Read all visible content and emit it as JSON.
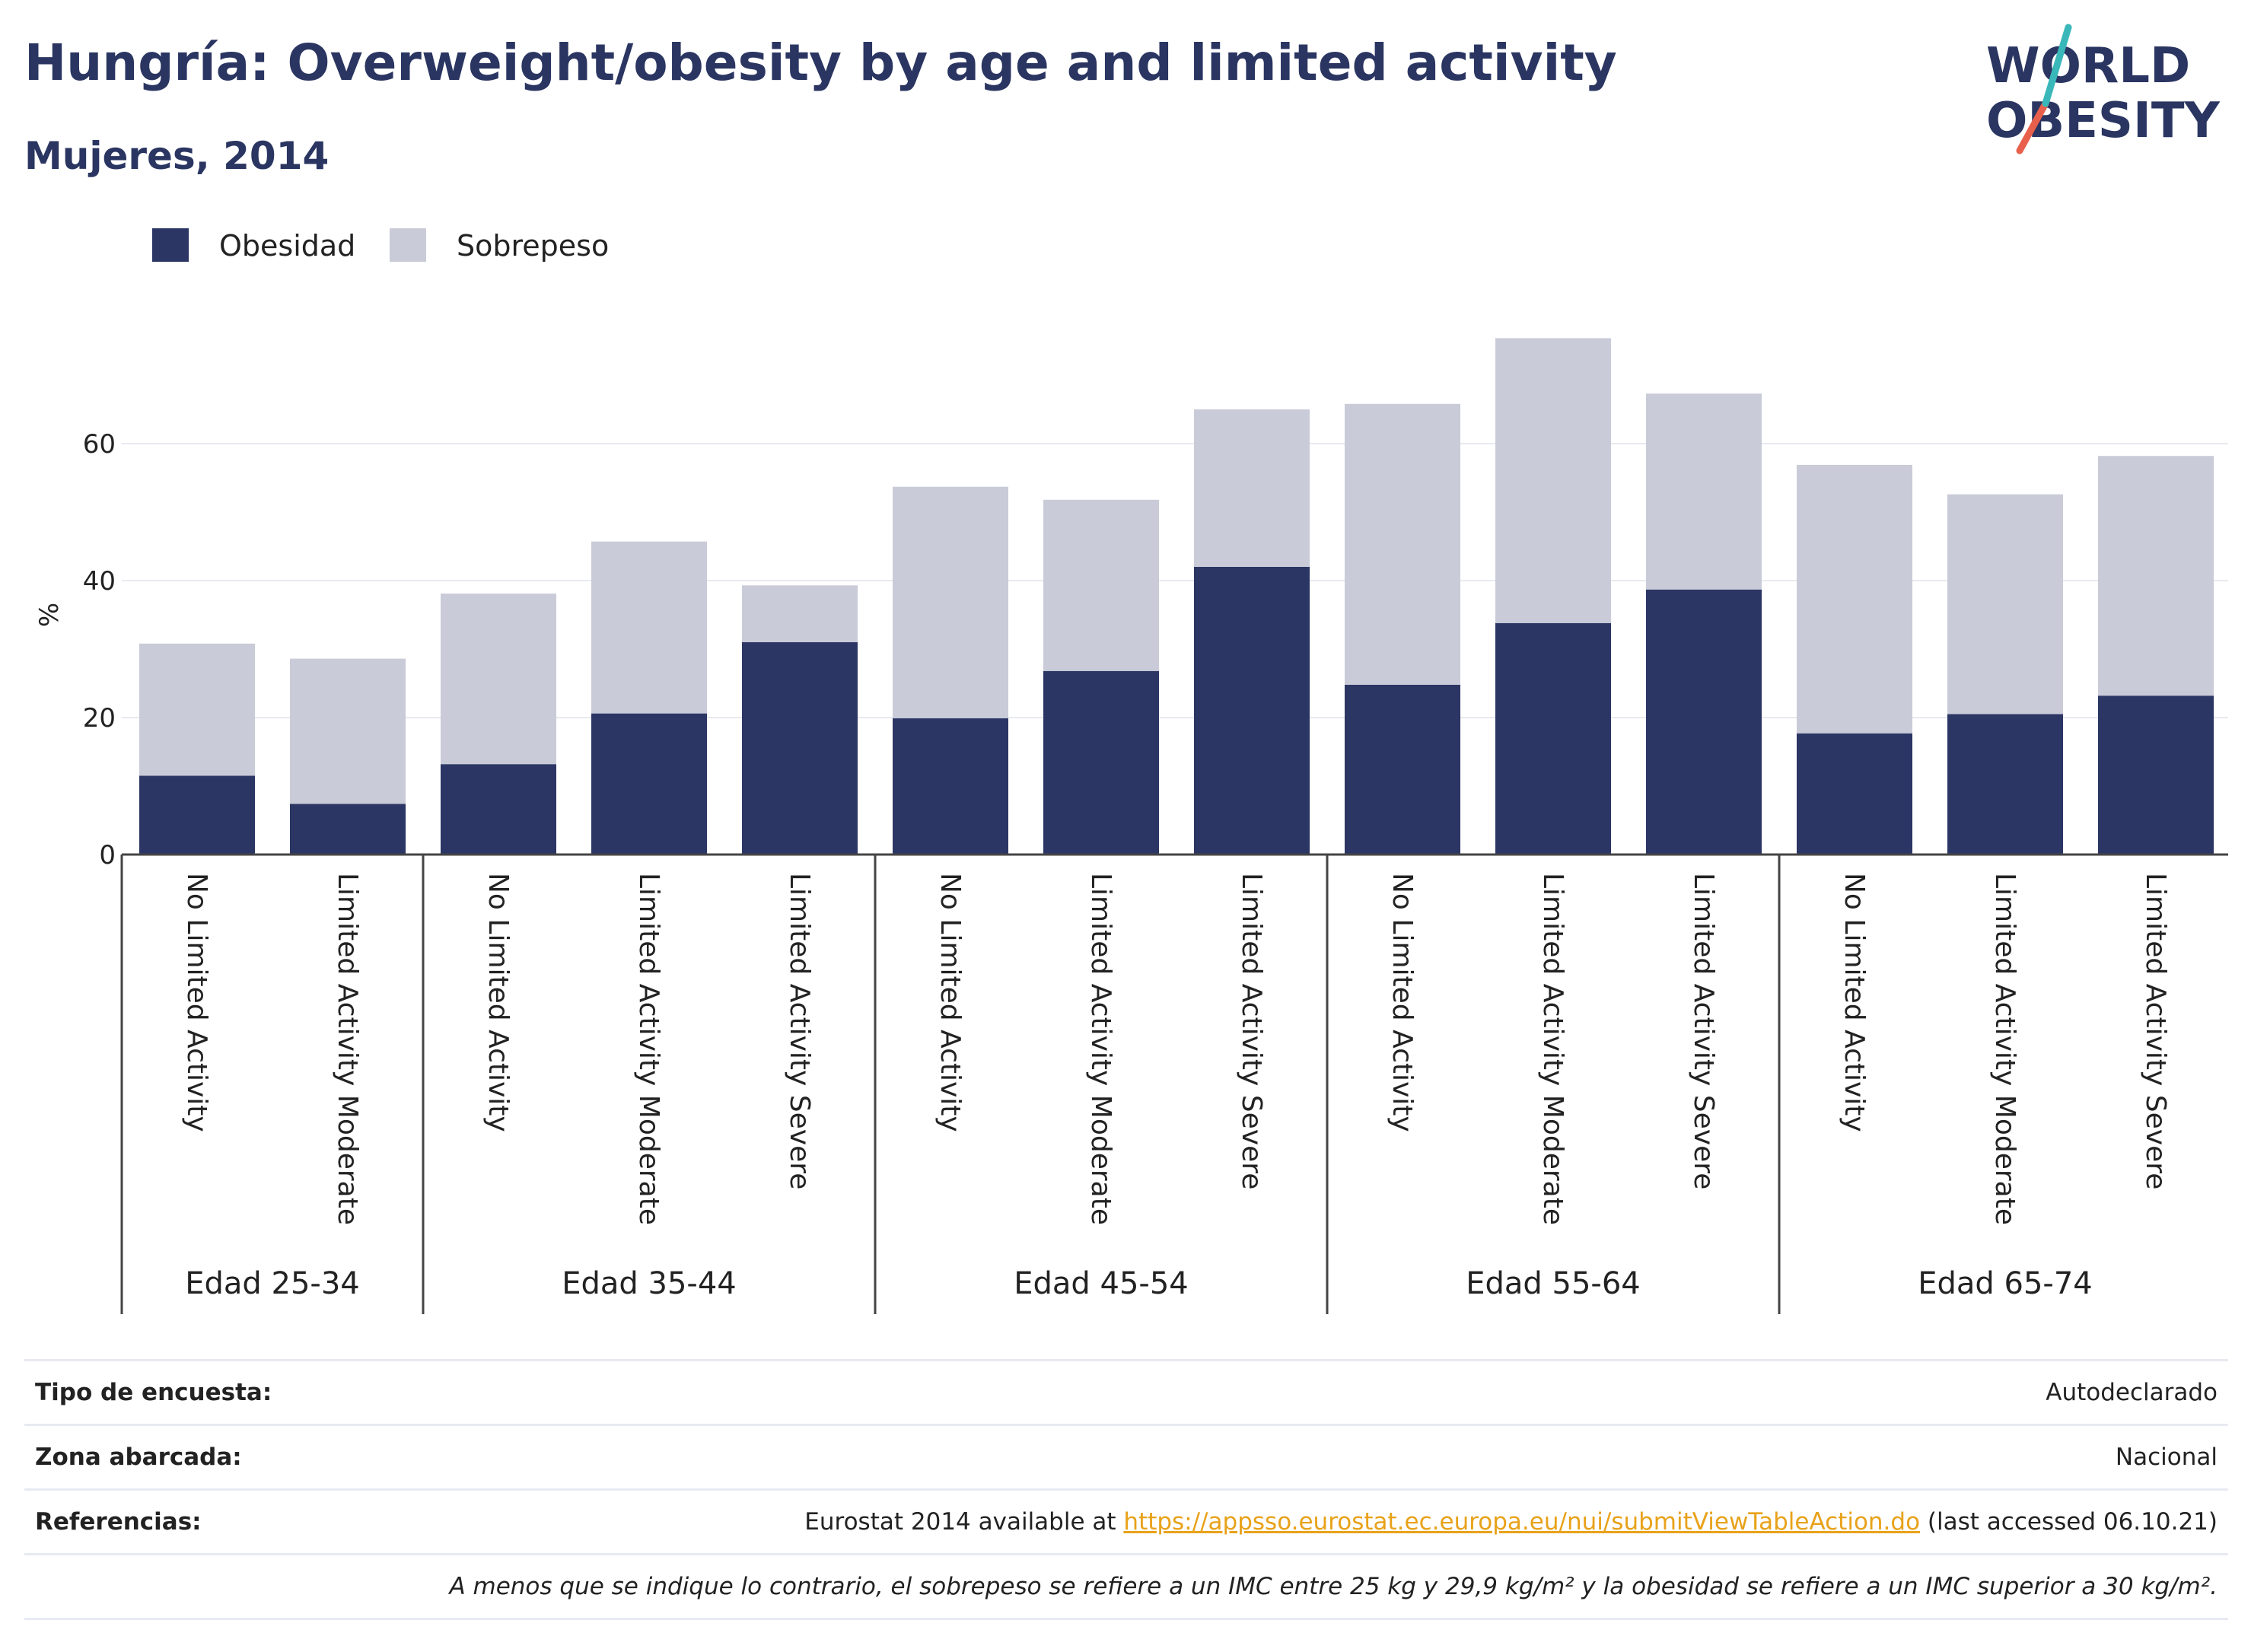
{
  "header": {
    "title": "Hungría: Overweight/obesity by age and limited activity",
    "subtitle": "Mujeres, 2014"
  },
  "logo": {
    "line1": "WORLD",
    "line2": "OBESITY"
  },
  "colors": {
    "obesity": "#2b3664",
    "overweight": "#c9cbd8",
    "accent_red": "#e8604c",
    "accent_teal": "#3ab7b8"
  },
  "chart_data": {
    "type": "bar",
    "stacked": true,
    "ylabel": "%",
    "ylim": [
      0,
      80
    ],
    "yticks": [
      0,
      20,
      40,
      60
    ],
    "grid": true,
    "legend_position": "top-left",
    "groups": [
      {
        "label": "Edad 25-34",
        "categories": [
          "No Limited Activity",
          "Limited Activity Moderate"
        ]
      },
      {
        "label": "Edad 35-44",
        "categories": [
          "No Limited Activity",
          "Limited Activity Moderate",
          "Limited Activity Severe"
        ]
      },
      {
        "label": "Edad 45-54",
        "categories": [
          "No Limited Activity",
          "Limited Activity Moderate",
          "Limited Activity Severe"
        ]
      },
      {
        "label": "Edad 55-64",
        "categories": [
          "No Limited Activity",
          "Limited Activity Moderate",
          "Limited Activity Severe"
        ]
      },
      {
        "label": "Edad 65-74",
        "categories": [
          "No Limited Activity",
          "Limited Activity Moderate",
          "Limited Activity Severe"
        ]
      }
    ],
    "series": [
      {
        "name": "Obesidad",
        "values": [
          11.5,
          7.4,
          13.2,
          20.6,
          31.0,
          19.9,
          26.8,
          42.0,
          24.8,
          33.8,
          38.7,
          17.7,
          20.5,
          23.2
        ]
      },
      {
        "name": "Sobrepeso",
        "values": [
          19.3,
          21.2,
          24.9,
          25.1,
          8.3,
          33.8,
          25.0,
          23.0,
          41.0,
          41.6,
          28.6,
          39.2,
          32.1,
          35.0
        ]
      }
    ]
  },
  "info": {
    "rows": [
      {
        "label": "Tipo de encuesta:",
        "value": "Autodeclarado"
      },
      {
        "label": "Zona abarcada:",
        "value": "Nacional"
      }
    ],
    "references": {
      "label": "Referencias:",
      "prefix": "Eurostat 2014 available at",
      "link": "https://appsso.eurostat.ec.europa.eu/nui/submitViewTableAction.do",
      "suffix": "(last accessed 06.10.21)"
    },
    "note": "A menos que se indique lo contrario, el sobrepeso se refiere a un IMC entre 25 kg y 29,9 kg/m² y la obesidad se refiere a un IMC superior a 30 kg/m²."
  }
}
